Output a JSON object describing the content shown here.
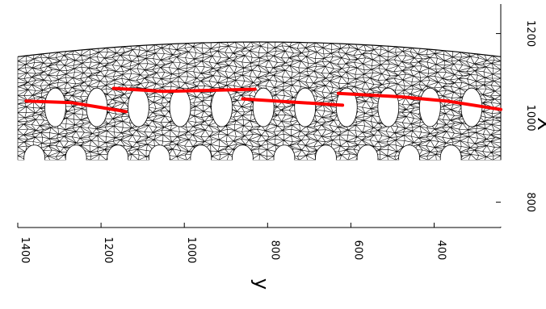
{
  "chart_data": {
    "type": "line",
    "title": "",
    "xlabel": "y",
    "ylabel": "X",
    "rotated": "figure rotated 90 degrees clockwise; y axis runs along the bottom decreasing to the right, X axis runs along the right side increasing upward",
    "y_axis": {
      "ticks": [
        400,
        600,
        800,
        1000,
        1200,
        1400
      ],
      "tick_labels": [
        "400",
        "600",
        "800",
        "1000",
        "1200",
        "1400"
      ],
      "lim": [
        240,
        1400
      ]
    },
    "x_axis": {
      "ticks": [
        800,
        1000,
        1200
      ],
      "tick_labels": [
        "800",
        "1000",
        "1200"
      ],
      "lim": [
        740,
        1270
      ]
    },
    "grid": false,
    "mesh": {
      "description": "triangulated finite-element mesh of a curved plate with two rows of elliptical holes",
      "y_range": [
        240,
        1400
      ],
      "x_bottom": 900,
      "x_top_center": 1180,
      "x_top_edges": 1145,
      "upper_holes": {
        "x_center": 1025,
        "y_centers": [
          1310,
          1210,
          1110,
          1010,
          910,
          810,
          710,
          610,
          510,
          410,
          310
        ]
      },
      "lower_holes": {
        "x_center": 905,
        "y_centers": [
          1360,
          1260,
          1160,
          1060,
          960,
          860,
          760,
          660,
          560,
          460,
          360
        ]
      },
      "color": "#000000"
    },
    "series": [
      {
        "color": "#ff0000",
        "segments": [
          {
            "y": [
              1380,
              1270,
              1140
            ],
            "x": [
              1040,
              1036,
              1015
            ]
          },
          {
            "y": [
              1170,
              1050,
              950,
              830
            ],
            "x": [
              1070,
              1063,
              1065,
              1068
            ]
          },
          {
            "y": [
              860,
              700,
              620
            ],
            "x": [
              1045,
              1035,
              1030
            ]
          },
          {
            "y": [
              630,
              480,
              370,
              240
            ],
            "x": [
              1058,
              1050,
              1040,
              1020
            ]
          }
        ]
      }
    ]
  }
}
